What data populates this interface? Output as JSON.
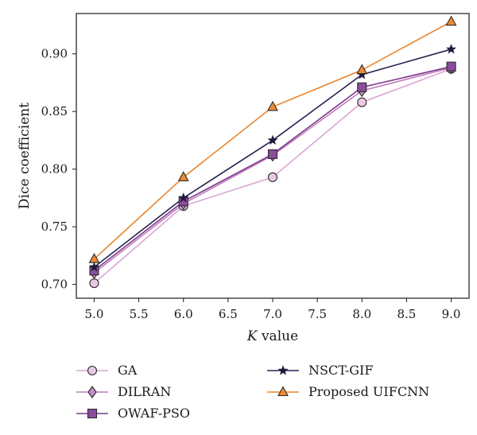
{
  "chart_data": {
    "type": "line",
    "xlabel_italic": "K",
    "xlabel_rest": " value",
    "ylabel": "Dice coefficient",
    "xlim": [
      4.8,
      9.2
    ],
    "ylim": [
      0.688,
      0.935
    ],
    "x_ticks": [
      "5.0",
      "5.5",
      "6.0",
      "6.5",
      "7.0",
      "7.5",
      "8.0",
      "8.5",
      "9.0"
    ],
    "y_ticks": [
      "0.70",
      "0.75",
      "0.80",
      "0.85",
      "0.90"
    ],
    "grid": false,
    "legend_position": "bottom",
    "x": [
      5.0,
      6.0,
      7.0,
      8.0,
      9.0
    ],
    "series": [
      {
        "name": "GA",
        "marker": "circle",
        "color": "#d9a6d4",
        "marker_fill": "#e8c8e3",
        "values": [
          0.701,
          0.768,
          0.793,
          0.858,
          0.887
        ]
      },
      {
        "name": "DILRAN",
        "marker": "diamond",
        "color": "#c27bbc",
        "marker_fill": "#c98ec3",
        "values": [
          0.71,
          0.77,
          0.812,
          0.868,
          0.888
        ]
      },
      {
        "name": "OWAF-PSO",
        "marker": "square",
        "color": "#7a3a8a",
        "marker_fill": "#8b4d9c",
        "values": [
          0.712,
          0.772,
          0.813,
          0.871,
          0.889
        ]
      },
      {
        "name": "NSCT-GIF",
        "marker": "star",
        "color": "#2b2150",
        "marker_fill": "#1f1a3a",
        "values": [
          0.715,
          0.775,
          0.825,
          0.882,
          0.904
        ]
      },
      {
        "name": "Proposed UIFCNN",
        "marker": "triangle",
        "color": "#e8852e",
        "marker_fill": "#ef8a34",
        "values": [
          0.722,
          0.793,
          0.854,
          0.886,
          0.928
        ]
      }
    ]
  }
}
